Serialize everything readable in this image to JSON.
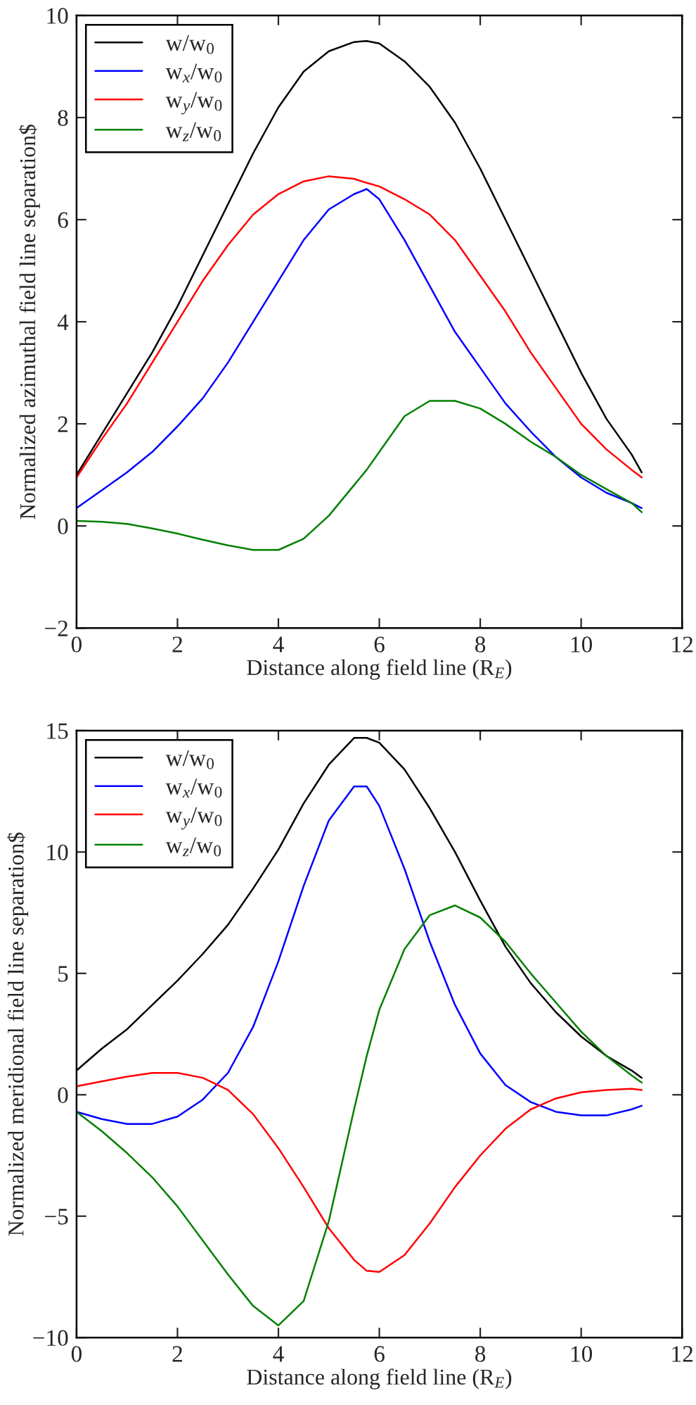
{
  "chart_data": [
    {
      "type": "line",
      "xlabel": "Distance along field line (R$_{E}$)",
      "ylabel": "Normalized azimuthal field line separation$",
      "x": [
        0,
        0.5,
        1,
        1.5,
        2,
        2.5,
        3,
        3.5,
        4,
        4.5,
        5,
        5.5,
        5.75,
        6,
        6.5,
        7,
        7.5,
        8,
        8.5,
        9,
        9.5,
        10,
        10.5,
        11,
        11.2
      ],
      "series": [
        {
          "name": "w/w$_{0}$",
          "color": "#000000",
          "values": [
            1.0,
            1.8,
            2.6,
            3.4,
            4.3,
            5.3,
            6.3,
            7.3,
            8.2,
            8.9,
            9.3,
            9.48,
            9.5,
            9.45,
            9.1,
            8.6,
            7.9,
            7.0,
            6.0,
            5.0,
            4.0,
            3.0,
            2.1,
            1.4,
            1.05
          ]
        },
        {
          "name": "w$_{x}$/w$_{0}$",
          "color": "#0000ff",
          "values": [
            0.35,
            0.7,
            1.05,
            1.45,
            1.95,
            2.5,
            3.2,
            4.0,
            4.8,
            5.6,
            6.2,
            6.5,
            6.6,
            6.4,
            5.6,
            4.7,
            3.8,
            3.1,
            2.4,
            1.85,
            1.35,
            0.95,
            0.65,
            0.45,
            0.35
          ]
        },
        {
          "name": "w$_{y}$/w$_{0}$",
          "color": "#ff0000",
          "values": [
            0.95,
            1.7,
            2.4,
            3.2,
            4.0,
            4.8,
            5.5,
            6.1,
            6.5,
            6.75,
            6.85,
            6.8,
            6.72,
            6.65,
            6.4,
            6.1,
            5.6,
            4.9,
            4.2,
            3.4,
            2.7,
            2.0,
            1.5,
            1.1,
            0.95
          ]
        },
        {
          "name": "w$_{z}$/w$_{0}$",
          "color": "#008000",
          "values": [
            0.1,
            0.08,
            0.04,
            -0.05,
            -0.15,
            -0.27,
            -0.38,
            -0.47,
            -0.47,
            -0.25,
            0.2,
            0.8,
            1.1,
            1.45,
            2.15,
            2.45,
            2.45,
            2.3,
            2.0,
            1.65,
            1.35,
            1.0,
            0.72,
            0.45,
            0.27
          ]
        }
      ],
      "xlim": [
        0,
        12
      ],
      "xticks": [
        0,
        2,
        4,
        6,
        8,
        10,
        12
      ],
      "ylim": [
        -2,
        10
      ],
      "yticks": [
        {
          "value": -2,
          "label": "−2"
        },
        0,
        2,
        4,
        6,
        8,
        10
      ],
      "legend": "top left",
      "grid": false
    },
    {
      "type": "line",
      "xlabel": "Distance along field line (R$_{E}$)",
      "ylabel": "Normalized meridional field line separation$",
      "x": [
        0,
        0.5,
        1,
        1.5,
        2,
        2.5,
        3,
        3.5,
        4,
        4.5,
        5,
        5.5,
        5.75,
        6,
        6.5,
        7,
        7.5,
        8,
        8.5,
        9,
        9.5,
        10,
        10.5,
        11,
        11.2
      ],
      "series": [
        {
          "name": "w/w$_{0}$",
          "color": "#000000",
          "values": [
            1.0,
            1.9,
            2.7,
            3.7,
            4.7,
            5.8,
            7.0,
            8.5,
            10.1,
            12.0,
            13.6,
            14.7,
            14.7,
            14.5,
            13.4,
            11.8,
            10.0,
            8.0,
            6.1,
            4.6,
            3.4,
            2.4,
            1.6,
            1.0,
            0.7
          ]
        },
        {
          "name": "w$_{x}$/w$_{0}$",
          "color": "#0000ff",
          "values": [
            -0.7,
            -1.0,
            -1.2,
            -1.2,
            -0.9,
            -0.2,
            0.9,
            2.8,
            5.5,
            8.6,
            11.3,
            12.7,
            12.7,
            11.9,
            9.3,
            6.3,
            3.7,
            1.7,
            0.4,
            -0.3,
            -0.7,
            -0.85,
            -0.85,
            -0.6,
            -0.45
          ]
        },
        {
          "name": "w$_{y}$/w$_{0}$",
          "color": "#ff0000",
          "values": [
            0.35,
            0.55,
            0.75,
            0.9,
            0.9,
            0.7,
            0.2,
            -0.8,
            -2.2,
            -3.8,
            -5.5,
            -6.8,
            -7.25,
            -7.3,
            -6.6,
            -5.3,
            -3.8,
            -2.5,
            -1.4,
            -0.6,
            -0.15,
            0.1,
            0.2,
            0.25,
            0.2
          ]
        },
        {
          "name": "w$_{z}$/w$_{0}$",
          "color": "#008000",
          "values": [
            -0.7,
            -1.5,
            -2.4,
            -3.4,
            -4.6,
            -6.0,
            -7.4,
            -8.7,
            -9.5,
            -8.5,
            -5.2,
            -0.6,
            1.6,
            3.5,
            6.0,
            7.4,
            7.8,
            7.3,
            6.3,
            5.0,
            3.8,
            2.6,
            1.6,
            0.8,
            0.5
          ]
        }
      ],
      "xlim": [
        0,
        12
      ],
      "xticks": [
        0,
        2,
        4,
        6,
        8,
        10,
        12
      ],
      "ylim": [
        -10,
        15
      ],
      "yticks": [
        {
          "value": -10,
          "label": "−10"
        },
        {
          "value": -5,
          "label": "−5"
        },
        0,
        5,
        10,
        15
      ],
      "legend": "top left",
      "grid": false
    }
  ]
}
